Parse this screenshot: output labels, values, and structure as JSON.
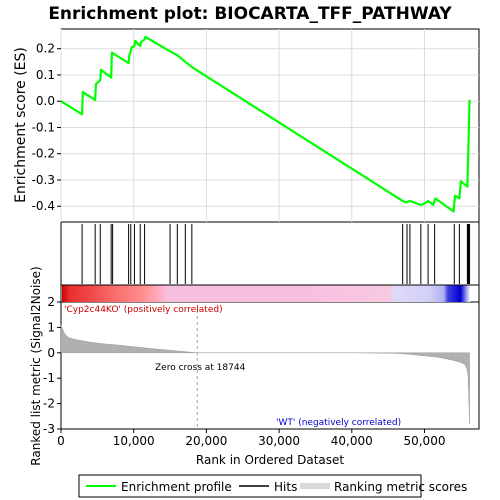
{
  "chart_data": {
    "type": "line",
    "title": "Enrichment plot: BIOCARTA_TFF_PATHWAY",
    "top_panel": {
      "ylabel": "Enrichment score (ES)",
      "ylim": [
        -0.46,
        0.275
      ],
      "yticks": [
        "0.2",
        "0.1",
        "0.0",
        "-0.1",
        "-0.2",
        "-0.3",
        "-0.4"
      ],
      "ytick_values": [
        0.2,
        0.1,
        0.0,
        -0.1,
        -0.2,
        -0.3,
        -0.4
      ],
      "grid": true,
      "series": [
        {
          "name": "Enrichment profile",
          "color": "#00ff00",
          "x": [
            0,
            2900,
            3000,
            4700,
            4800,
            5400,
            5500,
            6900,
            7000,
            9300,
            9400,
            9600,
            9700,
            10100,
            10200,
            10900,
            11000,
            11500,
            11600,
            15000,
            16000,
            17100,
            18000,
            47000,
            47500,
            48000,
            49500,
            50000,
            50500,
            51200,
            51500,
            54000,
            54200,
            54800,
            55000,
            55900,
            56000,
            56100,
            56200
          ],
          "y": [
            0.0,
            -0.05,
            0.035,
            0.005,
            0.065,
            0.08,
            0.12,
            0.09,
            0.185,
            0.145,
            0.175,
            0.19,
            0.205,
            0.21,
            0.23,
            0.21,
            0.225,
            0.235,
            0.245,
            0.19,
            0.175,
            0.15,
            0.13,
            -0.38,
            -0.385,
            -0.38,
            -0.395,
            -0.39,
            -0.38,
            -0.395,
            -0.37,
            -0.42,
            -0.36,
            -0.37,
            -0.305,
            -0.325,
            -0.22,
            -0.11,
            0.005
          ]
        }
      ]
    },
    "hits": {
      "name": "Hits",
      "x": [
        2900,
        4700,
        5400,
        6900,
        7100,
        9300,
        9600,
        10100,
        10900,
        11500,
        15000,
        16000,
        17100,
        18000,
        47000,
        47600,
        48000,
        49500,
        50500,
        51400,
        54100,
        54800,
        55900,
        56000,
        56100,
        56200
      ]
    },
    "ranking": {
      "name": "Ranking metric scores",
      "ylabel": "Ranked list metric (Signal2Noise)",
      "ylim": [
        -3,
        2
      ],
      "yticks": [
        "2",
        "1",
        "0",
        "-1",
        "-2",
        "-3"
      ],
      "ytick_values": [
        2,
        1,
        0,
        -1,
        -2,
        -3
      ],
      "x": [
        0,
        500,
        1000,
        2000,
        4000,
        6000,
        8000,
        10000,
        12000,
        15000,
        18744,
        20000,
        30000,
        40000,
        46000,
        48000,
        50000,
        52000,
        54000,
        55000,
        55500,
        55800,
        56000,
        56200
      ],
      "y": [
        1.1,
        0.75,
        0.6,
        0.52,
        0.42,
        0.35,
        0.3,
        0.24,
        0.18,
        0.1,
        0.0,
        0.0,
        0.0,
        0.0,
        -0.02,
        -0.06,
        -0.12,
        -0.18,
        -0.3,
        -0.38,
        -0.45,
        -0.6,
        -0.9,
        -2.8
      ],
      "zero_cross_label": "Zero cross at 18744",
      "zero_cross_x": 18744,
      "pos_label": "'Cyp2c44KO' (positively correlated)",
      "neg_label": "'WT' (negatively correlated)"
    },
    "x_axis": {
      "xlabel": "Rank in Ordered Dataset",
      "xlim": [
        0,
        57500
      ],
      "xticks": [
        "0",
        "10,000",
        "20,000",
        "30,000",
        "40,000",
        "50,000"
      ],
      "xtick_values": [
        0,
        10000,
        20000,
        30000,
        40000,
        50000
      ]
    },
    "legend": {
      "placement": "bottom",
      "items": [
        "Enrichment profile",
        "Hits",
        "Ranking metric scores"
      ]
    },
    "colors": {
      "profile": "#00ff00",
      "hits": "#000000",
      "ranking_fill": "#b0b0b0",
      "pos_label": "#cc0000",
      "neg_label": "#0000cc"
    }
  }
}
